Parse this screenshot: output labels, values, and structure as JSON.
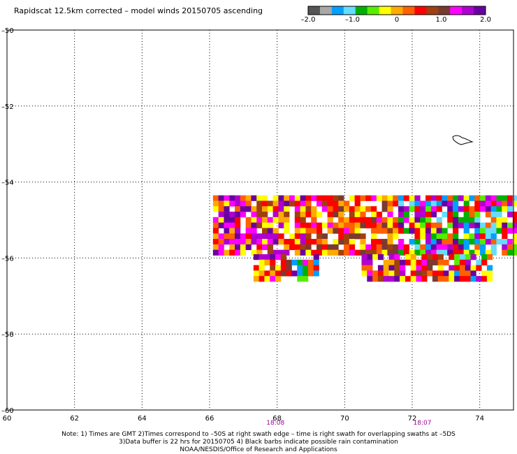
{
  "title": "Rapidscat 12.5km corrected – model winds 20150705 ascending",
  "colorbar": {
    "colors": [
      "#555555",
      "#a8a8a8",
      "#00a0ff",
      "#66ddff",
      "#00b000",
      "#55ee00",
      "#ffff00",
      "#ffaa00",
      "#ff6000",
      "#ff0000",
      "#a04010",
      "#7a3a30",
      "#ff00ff",
      "#b000d0",
      "#6a00a0"
    ],
    "tick_labels": [
      "–2.0",
      "–1.0",
      "0",
      "1.0",
      "2.0"
    ]
  },
  "chart_data": {
    "type": "heatmap",
    "x_axis": {
      "range": [
        60,
        75
      ],
      "ticks": [
        60,
        62,
        64,
        66,
        68,
        70,
        72,
        74
      ],
      "tick_labels": [
        "60",
        "62",
        "64",
        "66",
        "68",
        "70",
        "72",
        "74"
      ]
    },
    "y_axis": {
      "range": [
        -60,
        -50
      ],
      "ticks": [
        -50,
        -52,
        -54,
        -56,
        -58,
        -60
      ],
      "tick_labels": [
        "–50",
        "–52",
        "–54",
        "–56",
        "–58",
        "–60"
      ]
    },
    "grid": true,
    "grid_style": "dotted",
    "time_labels": [
      {
        "x": 67.95,
        "text": "18:08"
      },
      {
        "x": 72.3,
        "text": "18:07"
      }
    ],
    "time_label_color": "#a000a0",
    "value_range": [
      -2.0,
      2.0
    ],
    "swaths": [
      {
        "x_start": 66.1,
        "x_end": 75.0,
        "y_top": -54.35,
        "y_bottom": -55.9
      },
      {
        "x_start": 67.3,
        "x_end": 69.1,
        "y_top": -55.9,
        "y_bottom": -56.55
      },
      {
        "x_start": 70.5,
        "x_end": 74.3,
        "y_top": -55.9,
        "y_bottom": -56.55
      }
    ]
  },
  "notes": [
    "Note: 1) Times are GMT 2)Times correspond to –50S at right swath edge – time is right swath for overlapping swaths at –5DS",
    "3)Data buffer is 22 hrs for 20150705 4) Black barbs indicate possible rain contamination",
    "NOAA/NESDIS/Office of Research and Applications"
  ]
}
